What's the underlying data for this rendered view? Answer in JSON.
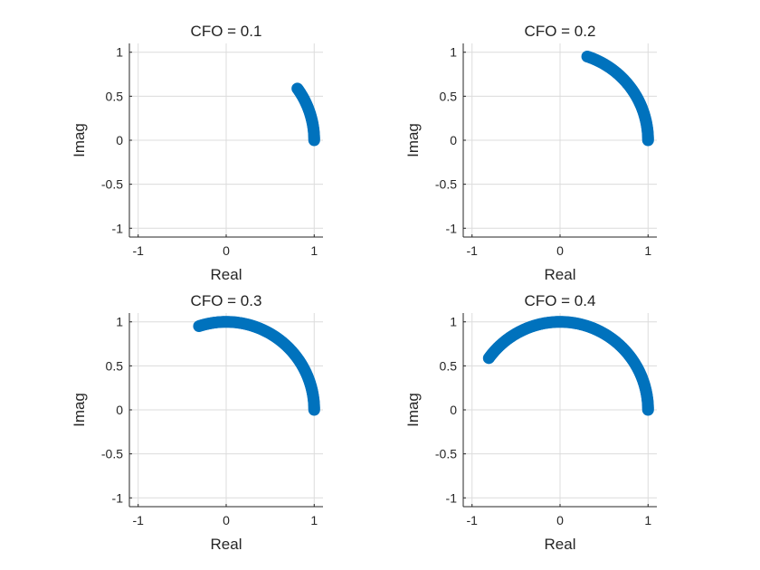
{
  "chart_data": [
    {
      "type": "scatter",
      "title": "CFO = 0.1",
      "xlabel": "Real",
      "ylabel": "Imag",
      "xlim": [
        -1.1,
        1.1
      ],
      "ylim": [
        -1.1,
        1.1
      ],
      "xticks": [
        "-1",
        "0",
        "1"
      ],
      "yticks": [
        "1",
        "0.5",
        "0",
        "-0.5",
        "-1"
      ],
      "grid": true,
      "color": "#0072BD",
      "series": [
        {
          "arc_start_angle_deg": 0,
          "arc_end_angle_deg": 36,
          "radius": 1
        }
      ]
    },
    {
      "type": "scatter",
      "title": "CFO = 0.2",
      "xlabel": "Real",
      "ylabel": "Imag",
      "xlim": [
        -1.1,
        1.1
      ],
      "ylim": [
        -1.1,
        1.1
      ],
      "xticks": [
        "-1",
        "0",
        "1"
      ],
      "yticks": [
        "1",
        "0.5",
        "0",
        "-0.5",
        "-1"
      ],
      "grid": true,
      "color": "#0072BD",
      "series": [
        {
          "arc_start_angle_deg": 0,
          "arc_end_angle_deg": 72,
          "radius": 1
        }
      ]
    },
    {
      "type": "scatter",
      "title": "CFO = 0.3",
      "xlabel": "Real",
      "ylabel": "Imag",
      "xlim": [
        -1.1,
        1.1
      ],
      "ylim": [
        -1.1,
        1.1
      ],
      "xticks": [
        "-1",
        "0",
        "1"
      ],
      "yticks": [
        "1",
        "0.5",
        "0",
        "-0.5",
        "-1"
      ],
      "grid": true,
      "color": "#0072BD",
      "series": [
        {
          "arc_start_angle_deg": 0,
          "arc_end_angle_deg": 108,
          "radius": 1
        }
      ]
    },
    {
      "type": "scatter",
      "title": "CFO = 0.4",
      "xlabel": "Real",
      "ylabel": "Imag",
      "xlim": [
        -1.1,
        1.1
      ],
      "ylim": [
        -1.1,
        1.1
      ],
      "xticks": [
        "-1",
        "0",
        "1"
      ],
      "yticks": [
        "1",
        "0.5",
        "0",
        "-0.5",
        "-1"
      ],
      "grid": true,
      "color": "#0072BD",
      "series": [
        {
          "arc_start_angle_deg": 0,
          "arc_end_angle_deg": 144,
          "radius": 1
        }
      ]
    }
  ]
}
